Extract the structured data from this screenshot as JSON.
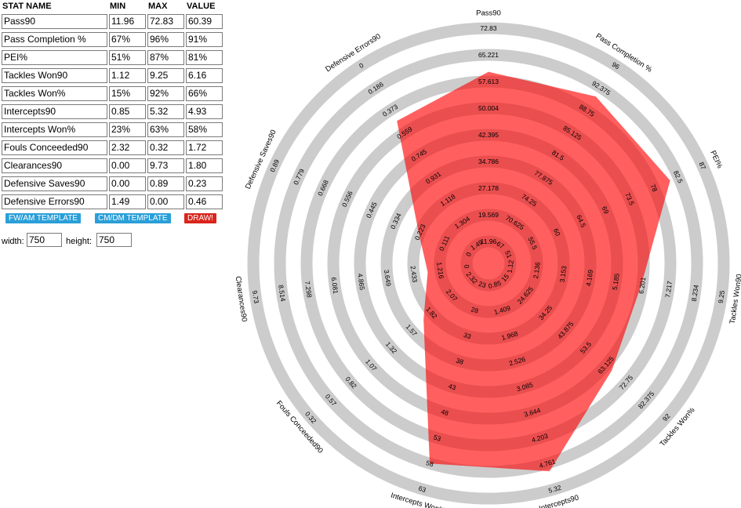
{
  "table": {
    "headers": [
      "STAT NAME",
      "MIN",
      "MAX",
      "VALUE"
    ],
    "rows": [
      {
        "name": "Pass90",
        "min": "11.96",
        "max": "72.83",
        "value": "60.39"
      },
      {
        "name": "Pass Completion %",
        "min": "67%",
        "max": "96%",
        "value": "91%"
      },
      {
        "name": "PEI%",
        "min": "51%",
        "max": "87%",
        "value": "81%"
      },
      {
        "name": "Tackles  Won90",
        "min": "1.12",
        "max": "9.25",
        "value": "6.16"
      },
      {
        "name": "Tackles  Won%",
        "min": "15%",
        "max": "92%",
        "value": "66%"
      },
      {
        "name": "Intercepts90",
        "min": "0.85",
        "max": "5.32",
        "value": "4.93"
      },
      {
        "name": "Intercepts Won%",
        "min": "23%",
        "max": "63%",
        "value": "58%"
      },
      {
        "name": "Fouls Conceeded90",
        "min": "2.32",
        "max": "0.32",
        "value": "1.72"
      },
      {
        "name": "Clearances90",
        "min": "0.00",
        "max": "9.73",
        "value": "1.80"
      },
      {
        "name": "Defensive Saves90",
        "min": "0.00",
        "max": "0.89",
        "value": "0.23"
      },
      {
        "name": "Defensive Errors90",
        "min": "1.49",
        "max": "0.00",
        "value": "0.46"
      }
    ]
  },
  "buttons": {
    "fw_am": "FW/AM TEMPLATE",
    "cm_dm": "CM/DM TEMPLATE",
    "draw": "DRAW!"
  },
  "dimensions": {
    "width_label": "width:",
    "width_value": "750",
    "height_label": "height:",
    "height_value": "750"
  },
  "colors": {
    "ring": "#cccccc",
    "fill": "#ff5f5f",
    "fill_shade": "#d84040"
  },
  "chart_data": {
    "type": "radar",
    "axes": [
      {
        "name": "Pass90",
        "min": 11.96,
        "max": 72.83,
        "value": 60.39,
        "ticks": [
          "11.96",
          "19.569",
          "27.178",
          "34.786",
          "42.395",
          "50.004",
          "57.613",
          "65.221",
          "72.83"
        ]
      },
      {
        "name": "Pass Completion %",
        "min": 67,
        "max": 96,
        "value": 91,
        "ticks": [
          "67",
          "70.625",
          "74.25",
          "77.875",
          "81.5",
          "85.125",
          "88.75",
          "92.375",
          "96"
        ]
      },
      {
        "name": "PEI%",
        "min": 51,
        "max": 87,
        "value": 81,
        "ticks": [
          "51",
          "55.5",
          "60",
          "64.5",
          "69",
          "73.5",
          "78",
          "82.5",
          "87"
        ]
      },
      {
        "name": "Tackles  Won90",
        "min": 1.12,
        "max": 9.25,
        "value": 6.16,
        "ticks": [
          "1.12",
          "2.136",
          "3.153",
          "4.169",
          "5.185",
          "6.201",
          "7.217",
          "8.234",
          "9.25"
        ]
      },
      {
        "name": "Tackles  Won%",
        "min": 15,
        "max": 92,
        "value": 66,
        "ticks": [
          "15",
          "24.625",
          "34.25",
          "43.875",
          "53.5",
          "63.125",
          "72.75",
          "82.375",
          "92"
        ]
      },
      {
        "name": "Intercepts90",
        "min": 0.85,
        "max": 5.32,
        "value": 4.93,
        "ticks": [
          "0.85",
          "1.409",
          "1.968",
          "2.526",
          "3.085",
          "3.644",
          "4.203",
          "4.761",
          "5.32"
        ]
      },
      {
        "name": "Intercepts Won%",
        "min": 23,
        "max": 63,
        "value": 58,
        "ticks": [
          "23",
          "28",
          "33",
          "38",
          "43",
          "48",
          "53",
          "58",
          "63"
        ]
      },
      {
        "name": "Fouls Conceeded90",
        "min": 2.32,
        "max": 0.32,
        "value": 1.72,
        "ticks": [
          "2.32",
          "2.07",
          "1.82",
          "1.57",
          "1.32",
          "1.07",
          "0.82",
          "0.57",
          "0.32"
        ]
      },
      {
        "name": "Clearances90",
        "min": 0,
        "max": 9.73,
        "value": 1.8,
        "ticks": [
          "0",
          "1.216",
          "2.433",
          "3.649",
          "4.865",
          "6.081",
          "7.298",
          "8.514",
          "9.73"
        ]
      },
      {
        "name": "Defensive Saves90",
        "min": 0,
        "max": 0.89,
        "value": 0.23,
        "ticks": [
          "0",
          "0.111",
          "0.223",
          "0.334",
          "0.445",
          "0.556",
          "0.668",
          "0.779",
          "0.89"
        ]
      },
      {
        "name": "Defensive Errors90",
        "min": 1.49,
        "max": 0,
        "value": 0.46,
        "ticks": [
          "1.49",
          "1.304",
          "1.118",
          "0.931",
          "0.745",
          "0.559",
          "0.373",
          "0.186",
          "0"
        ]
      }
    ]
  }
}
